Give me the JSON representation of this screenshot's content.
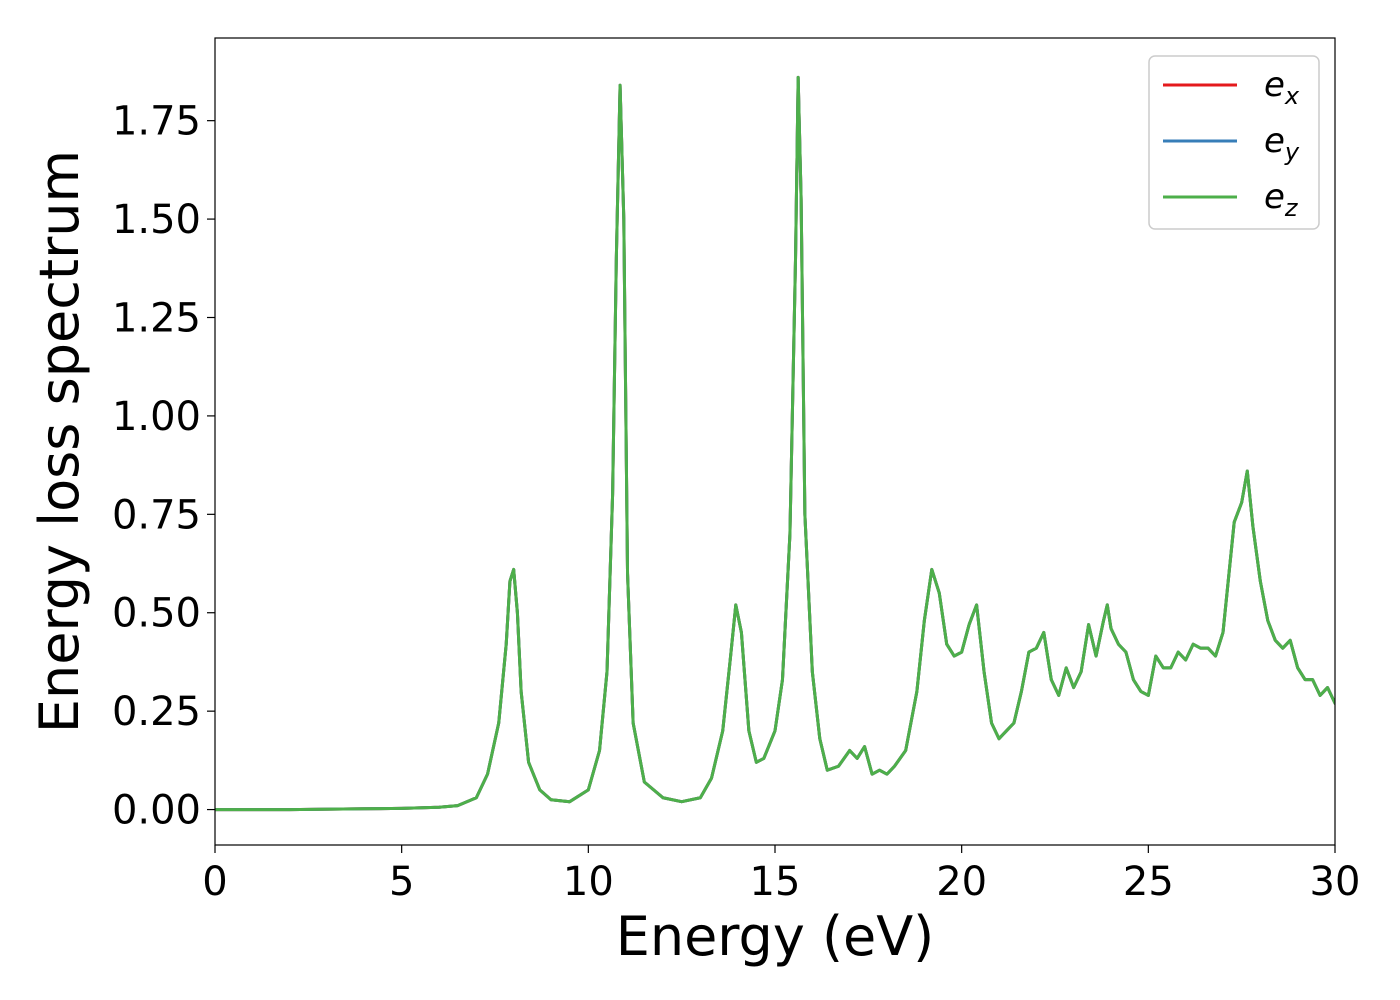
{
  "chart_data": {
    "type": "line",
    "xlabel": "Energy (eV)",
    "ylabel": "Energy loss spectrum",
    "xlim": [
      0,
      30
    ],
    "ylim": [
      -0.09,
      1.96
    ],
    "xticks": [
      0,
      5,
      10,
      15,
      20,
      25,
      30
    ],
    "xtick_labels": [
      "0",
      "5",
      "10",
      "15",
      "20",
      "25",
      "30"
    ],
    "yticks": [
      0.0,
      0.25,
      0.5,
      0.75,
      1.0,
      1.25,
      1.5,
      1.75
    ],
    "ytick_labels": [
      "0.00",
      "0.25",
      "0.50",
      "0.75",
      "1.00",
      "1.25",
      "1.50",
      "1.75"
    ],
    "grid": false,
    "legend_position": "top-right",
    "x": [
      0,
      2,
      4,
      5,
      6,
      6.5,
      7,
      7.3,
      7.6,
      7.8,
      7.9,
      8.0,
      8.1,
      8.2,
      8.4,
      8.7,
      9.0,
      9.5,
      10.0,
      10.3,
      10.5,
      10.65,
      10.75,
      10.85,
      10.95,
      11.05,
      11.2,
      11.5,
      12.0,
      12.5,
      13.0,
      13.3,
      13.6,
      13.8,
      13.95,
      14.1,
      14.3,
      14.5,
      14.7,
      15.0,
      15.2,
      15.4,
      15.55,
      15.62,
      15.7,
      15.8,
      16.0,
      16.2,
      16.4,
      16.7,
      17.0,
      17.2,
      17.4,
      17.6,
      17.8,
      18.0,
      18.2,
      18.5,
      18.8,
      19.0,
      19.2,
      19.4,
      19.6,
      19.8,
      20.0,
      20.2,
      20.4,
      20.6,
      20.8,
      21.0,
      21.2,
      21.4,
      21.6,
      21.8,
      22.0,
      22.2,
      22.4,
      22.6,
      22.8,
      23.0,
      23.2,
      23.4,
      23.6,
      23.8,
      23.9,
      24.0,
      24.2,
      24.4,
      24.6,
      24.8,
      25.0,
      25.2,
      25.4,
      25.6,
      25.8,
      26.0,
      26.2,
      26.4,
      26.6,
      26.8,
      27.0,
      27.3,
      27.5,
      27.65,
      27.8,
      28.0,
      28.2,
      28.4,
      28.6,
      28.8,
      29.0,
      29.2,
      29.4,
      29.6,
      29.8,
      30.0
    ],
    "series": [
      {
        "name": "x",
        "color": "#e41a1c",
        "values": [
          0.0,
          0.0,
          0.002,
          0.003,
          0.006,
          0.01,
          0.03,
          0.09,
          0.22,
          0.42,
          0.58,
          0.61,
          0.5,
          0.3,
          0.12,
          0.05,
          0.025,
          0.02,
          0.05,
          0.15,
          0.35,
          0.8,
          1.4,
          1.84,
          1.5,
          0.6,
          0.22,
          0.07,
          0.03,
          0.02,
          0.03,
          0.08,
          0.2,
          0.38,
          0.52,
          0.45,
          0.2,
          0.12,
          0.13,
          0.2,
          0.33,
          0.7,
          1.4,
          1.86,
          1.55,
          0.75,
          0.35,
          0.18,
          0.1,
          0.11,
          0.15,
          0.13,
          0.16,
          0.09,
          0.1,
          0.09,
          0.11,
          0.15,
          0.3,
          0.48,
          0.61,
          0.55,
          0.42,
          0.39,
          0.4,
          0.47,
          0.52,
          0.35,
          0.22,
          0.18,
          0.2,
          0.22,
          0.3,
          0.4,
          0.41,
          0.45,
          0.33,
          0.29,
          0.36,
          0.31,
          0.35,
          0.47,
          0.39,
          0.48,
          0.52,
          0.46,
          0.42,
          0.4,
          0.33,
          0.3,
          0.29,
          0.39,
          0.36,
          0.36,
          0.4,
          0.38,
          0.42,
          0.41,
          0.41,
          0.39,
          0.45,
          0.73,
          0.78,
          0.86,
          0.72,
          0.58,
          0.48,
          0.43,
          0.41,
          0.43,
          0.36,
          0.33,
          0.33,
          0.29,
          0.31,
          0.27
        ]
      },
      {
        "name": "y",
        "color": "#377eb8",
        "values": [
          0.0,
          0.0,
          0.002,
          0.003,
          0.006,
          0.01,
          0.03,
          0.09,
          0.22,
          0.42,
          0.58,
          0.61,
          0.5,
          0.3,
          0.12,
          0.05,
          0.025,
          0.02,
          0.05,
          0.15,
          0.35,
          0.8,
          1.4,
          1.84,
          1.5,
          0.6,
          0.22,
          0.07,
          0.03,
          0.02,
          0.03,
          0.08,
          0.2,
          0.38,
          0.52,
          0.45,
          0.2,
          0.12,
          0.13,
          0.2,
          0.33,
          0.7,
          1.4,
          1.86,
          1.55,
          0.75,
          0.35,
          0.18,
          0.1,
          0.11,
          0.15,
          0.13,
          0.16,
          0.09,
          0.1,
          0.09,
          0.11,
          0.15,
          0.3,
          0.48,
          0.61,
          0.55,
          0.42,
          0.39,
          0.4,
          0.47,
          0.52,
          0.35,
          0.22,
          0.18,
          0.2,
          0.22,
          0.3,
          0.4,
          0.41,
          0.45,
          0.33,
          0.29,
          0.36,
          0.31,
          0.35,
          0.47,
          0.39,
          0.48,
          0.52,
          0.46,
          0.42,
          0.4,
          0.33,
          0.3,
          0.29,
          0.39,
          0.36,
          0.36,
          0.4,
          0.38,
          0.42,
          0.41,
          0.41,
          0.39,
          0.45,
          0.73,
          0.78,
          0.86,
          0.72,
          0.58,
          0.48,
          0.43,
          0.41,
          0.43,
          0.36,
          0.33,
          0.33,
          0.29,
          0.31,
          0.27
        ]
      },
      {
        "name": "z",
        "color": "#4daf4a",
        "values": [
          0.0,
          0.0,
          0.002,
          0.003,
          0.006,
          0.01,
          0.03,
          0.09,
          0.22,
          0.42,
          0.58,
          0.61,
          0.5,
          0.3,
          0.12,
          0.05,
          0.025,
          0.02,
          0.05,
          0.15,
          0.35,
          0.8,
          1.4,
          1.84,
          1.5,
          0.6,
          0.22,
          0.07,
          0.03,
          0.02,
          0.03,
          0.08,
          0.2,
          0.38,
          0.52,
          0.45,
          0.2,
          0.12,
          0.13,
          0.2,
          0.33,
          0.7,
          1.4,
          1.86,
          1.55,
          0.75,
          0.35,
          0.18,
          0.1,
          0.11,
          0.15,
          0.13,
          0.16,
          0.09,
          0.1,
          0.09,
          0.11,
          0.15,
          0.3,
          0.48,
          0.61,
          0.55,
          0.42,
          0.39,
          0.4,
          0.47,
          0.52,
          0.35,
          0.22,
          0.18,
          0.2,
          0.22,
          0.3,
          0.4,
          0.41,
          0.45,
          0.33,
          0.29,
          0.36,
          0.31,
          0.35,
          0.47,
          0.39,
          0.48,
          0.52,
          0.46,
          0.42,
          0.4,
          0.33,
          0.3,
          0.29,
          0.39,
          0.36,
          0.36,
          0.4,
          0.38,
          0.42,
          0.41,
          0.41,
          0.39,
          0.45,
          0.73,
          0.78,
          0.86,
          0.72,
          0.58,
          0.48,
          0.43,
          0.41,
          0.43,
          0.36,
          0.33,
          0.33,
          0.29,
          0.31,
          0.27
        ]
      }
    ],
    "legend": [
      {
        "base": "e",
        "sub": "x",
        "color": "#e41a1c"
      },
      {
        "base": "e",
        "sub": "y",
        "color": "#377eb8"
      },
      {
        "base": "e",
        "sub": "z",
        "color": "#4daf4a"
      }
    ]
  }
}
